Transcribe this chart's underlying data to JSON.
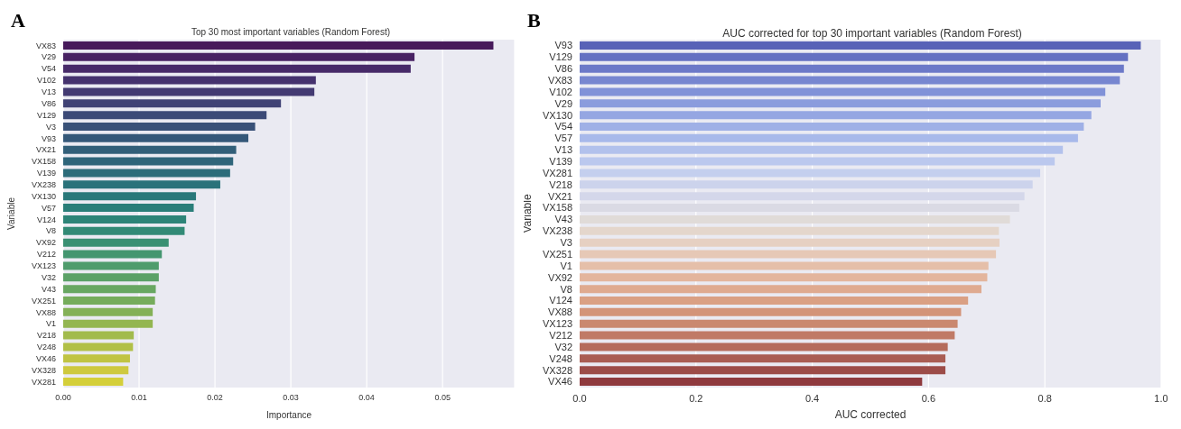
{
  "chart_data": [
    {
      "type": "bar",
      "orientation": "horizontal",
      "title": "Top 30 most important variables (Random Forest)",
      "xlabel": "Importance",
      "ylabel": "Variable",
      "annotations": [
        "A"
      ],
      "grid": "x",
      "categories": [
        "VX83",
        "V29",
        "V54",
        "V102",
        "V13",
        "V86",
        "V129",
        "V3",
        "V93",
        "VX21",
        "VX158",
        "V139",
        "VX238",
        "VX130",
        "V57",
        "V124",
        "V8",
        "VX92",
        "V212",
        "VX123",
        "V32",
        "V43",
        "VX251",
        "VX88",
        "V1",
        "V218",
        "V248",
        "VX46",
        "VX328",
        "VX281"
      ],
      "values": [
        0.0567,
        0.0463,
        0.0458,
        0.0333,
        0.0331,
        0.0287,
        0.0268,
        0.0253,
        0.0244,
        0.0228,
        0.0224,
        0.022,
        0.0207,
        0.0175,
        0.0172,
        0.0162,
        0.016,
        0.0139,
        0.013,
        0.0126,
        0.0126,
        0.0122,
        0.0121,
        0.0118,
        0.0118,
        0.0093,
        0.0092,
        0.0088,
        0.0086,
        0.0079
      ],
      "colors": [
        "#471a5b",
        "#482263",
        "#472a69",
        "#45326e",
        "#433a72",
        "#404275",
        "#3c4a77",
        "#395178",
        "#355879",
        "#325f79",
        "#2f657a",
        "#2c6c7a",
        "#2a727a",
        "#29787a",
        "#2a7e79",
        "#2d8478",
        "#328a76",
        "#3a9073",
        "#449670",
        "#4f9c6c",
        "#5ba167",
        "#68a762",
        "#76ac5c",
        "#84b157",
        "#93b651",
        "#a2bb4c",
        "#b1c047",
        "#c0c443",
        "#cec93f",
        "#d4cf3a"
      ],
      "xlim": [
        0,
        0.0595
      ],
      "xticks": [
        {
          "value": 0,
          "label": "0.00"
        },
        {
          "value": 0.01,
          "label": "0.01"
        },
        {
          "value": 0.02,
          "label": "0.02"
        },
        {
          "value": 0.03,
          "label": "0.03"
        },
        {
          "value": 0.04,
          "label": "0.04"
        },
        {
          "value": 0.05,
          "label": "0.05"
        }
      ]
    },
    {
      "type": "bar",
      "orientation": "horizontal",
      "title": "AUC corrected for top 30 important variables (Random Forest)",
      "xlabel": "AUC corrected",
      "ylabel": "Variable",
      "annotations": [
        "B"
      ],
      "grid": "x",
      "categories": [
        "V93",
        "V129",
        "V86",
        "VX83",
        "V102",
        "V29",
        "VX130",
        "V54",
        "V57",
        "V13",
        "V139",
        "VX281",
        "V218",
        "VX21",
        "VX158",
        "V43",
        "VX238",
        "V3",
        "VX251",
        "V1",
        "VX92",
        "V8",
        "V124",
        "VX88",
        "VX123",
        "V212",
        "V32",
        "V248",
        "VX328",
        "VX46"
      ],
      "values": [
        0.965,
        0.943,
        0.936,
        0.929,
        0.904,
        0.896,
        0.88,
        0.867,
        0.857,
        0.831,
        0.817,
        0.792,
        0.779,
        0.765,
        0.756,
        0.74,
        0.721,
        0.722,
        0.716,
        0.703,
        0.701,
        0.691,
        0.668,
        0.656,
        0.65,
        0.645,
        0.633,
        0.629,
        0.629,
        0.589
      ],
      "colors": [
        "#5862b7",
        "#6470c2",
        "#6c79c8",
        "#7786d0",
        "#8192d8",
        "#8b9cdd",
        "#95a6e2",
        "#9fb0e6",
        "#a8b9ea",
        "#b2c1ec",
        "#bbc8ee",
        "#c4cfee",
        "#ccd3ec",
        "#d4d7ea",
        "#dadae4",
        "#e0dbd8",
        "#e4d6cc",
        "#e6d0c2",
        "#e6c8b6",
        "#e5bfa9",
        "#e3b59d",
        "#dfaa90",
        "#daa084",
        "#d39479",
        "#ca886f",
        "#c07a66",
        "#b56c5c",
        "#a95d53",
        "#9c4c48",
        "#8f3a3e"
      ],
      "xlim": [
        0,
        1
      ],
      "xticks": [
        {
          "value": 0,
          "label": "0.0"
        },
        {
          "value": 0.2,
          "label": "0.2"
        },
        {
          "value": 0.4,
          "label": "0.4"
        },
        {
          "value": 0.6,
          "label": "0.6"
        },
        {
          "value": 0.8,
          "label": "0.8"
        },
        {
          "value": 1,
          "label": "1.0"
        }
      ]
    }
  ]
}
